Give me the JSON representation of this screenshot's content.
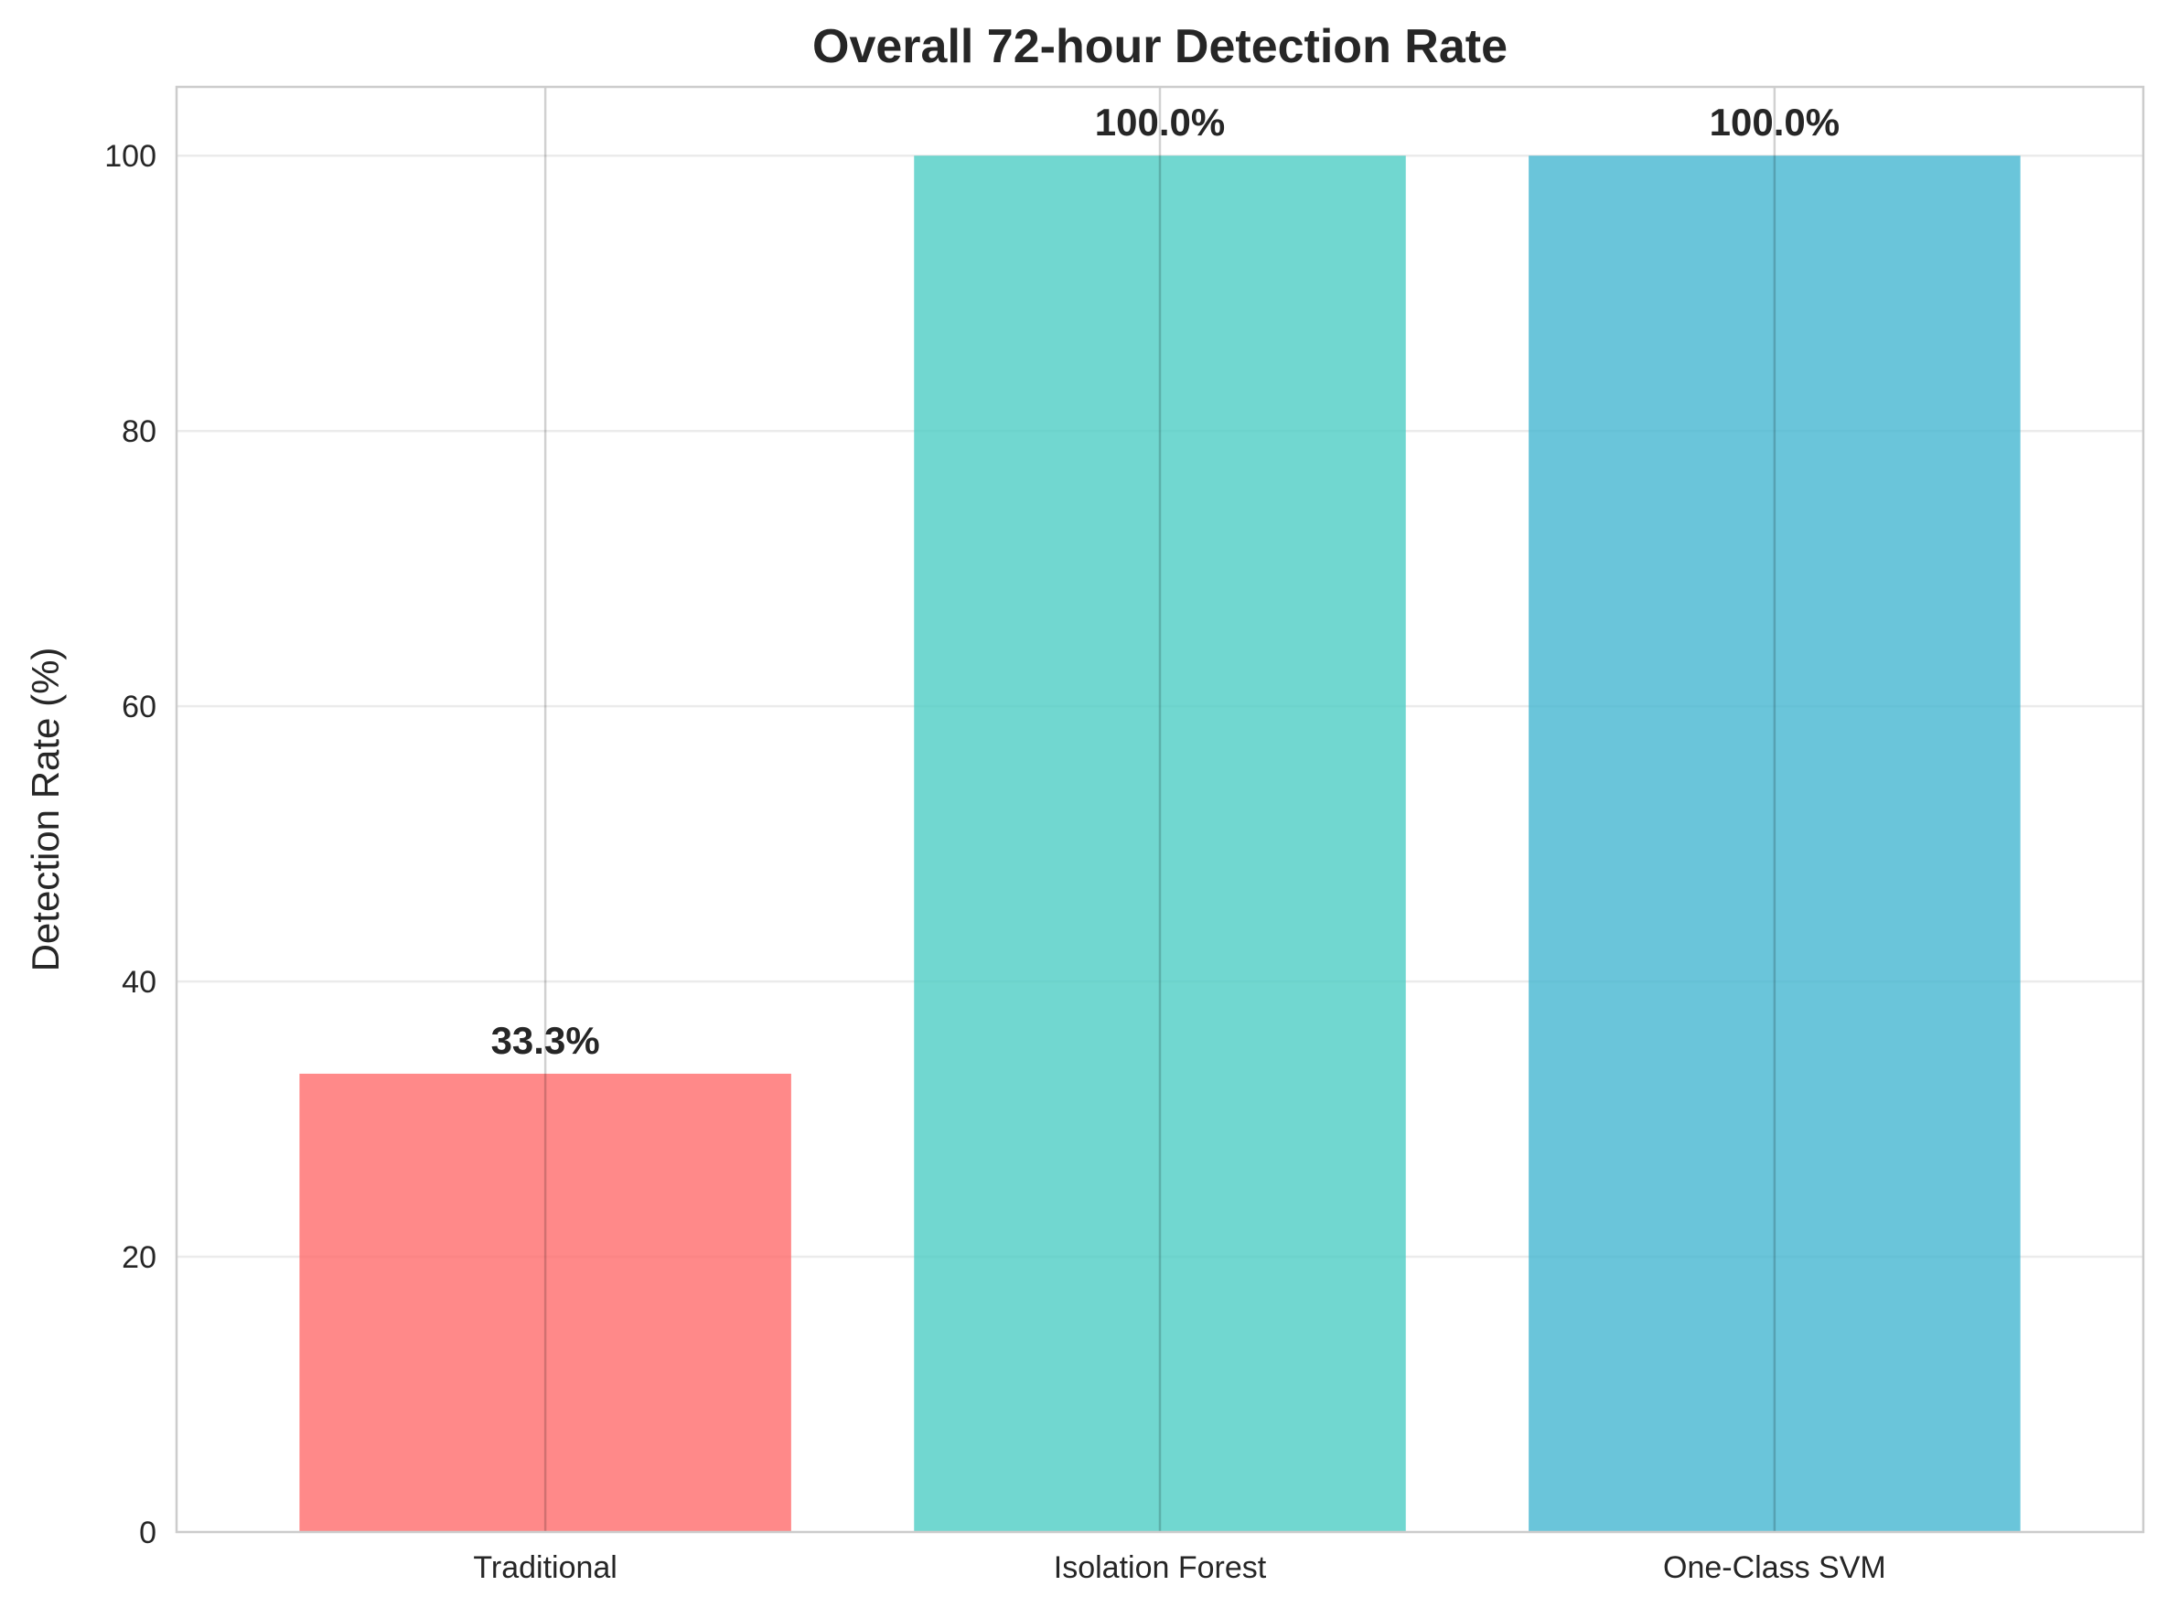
{
  "chart_data": {
    "type": "bar",
    "title": "Overall 72-hour Detection Rate",
    "xlabel": "",
    "ylabel": "Detection Rate (%)",
    "categories": [
      "Traditional",
      "Isolation Forest",
      "One-Class SVM"
    ],
    "values": [
      33.3,
      100.0,
      100.0
    ],
    "value_labels": [
      "33.3%",
      "100.0%",
      "100.0%"
    ],
    "colors": [
      "#FF6B6B",
      "#4ECDC4",
      "#45B7D1"
    ],
    "ylim": [
      0,
      105
    ],
    "yticks": [
      0,
      20,
      40,
      60,
      80,
      100
    ],
    "grid": true,
    "legend": "none"
  }
}
